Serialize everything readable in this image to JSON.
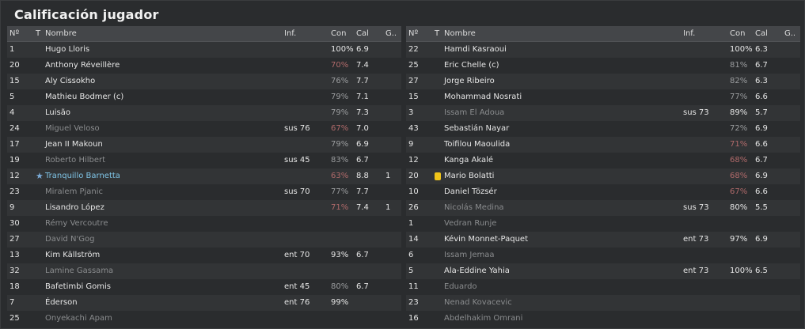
{
  "title": "Calificación jugador",
  "headers": {
    "num": "Nº",
    "t": "T",
    "name": "Nombre",
    "inf": "Inf.",
    "con": "Con",
    "cal": "Cal",
    "g": "G.."
  },
  "left": [
    {
      "num": "1",
      "name": "Hugo Lloris",
      "inf": "",
      "con": "100%",
      "cal": "6.9",
      "g": "",
      "name_style": "",
      "con_style": ""
    },
    {
      "num": "20",
      "name": "Anthony Réveillère",
      "inf": "",
      "con": "70%",
      "cal": "7.4",
      "g": "",
      "name_style": "",
      "con_style": "red"
    },
    {
      "num": "15",
      "name": "Aly Cissokho",
      "inf": "",
      "con": "76%",
      "cal": "7.7",
      "g": "",
      "name_style": "",
      "con_style": "grey"
    },
    {
      "num": "5",
      "name": "Mathieu Bodmer (c)",
      "inf": "",
      "con": "79%",
      "cal": "7.1",
      "g": "",
      "name_style": "",
      "con_style": "grey"
    },
    {
      "num": "4",
      "name": "Luisão",
      "inf": "",
      "con": "79%",
      "cal": "7.3",
      "g": "",
      "name_style": "",
      "con_style": "grey"
    },
    {
      "num": "24",
      "name": "Miguel Veloso",
      "inf": "sus 76",
      "con": "67%",
      "cal": "7.0",
      "g": "",
      "name_style": "dim",
      "con_style": "red"
    },
    {
      "num": "17",
      "name": "Jean II Makoun",
      "inf": "",
      "con": "79%",
      "cal": "6.9",
      "g": "",
      "name_style": "",
      "con_style": "grey"
    },
    {
      "num": "19",
      "name": "Roberto Hilbert",
      "inf": "sus 45",
      "con": "83%",
      "cal": "6.7",
      "g": "",
      "name_style": "dim",
      "con_style": "grey"
    },
    {
      "num": "12",
      "name": "Tranquillo Barnetta",
      "inf": "",
      "con": "63%",
      "cal": "8.8",
      "g": "1",
      "name_style": "hl",
      "con_style": "red",
      "star": "★"
    },
    {
      "num": "23",
      "name": "Miralem Pjanic",
      "inf": "sus 70",
      "con": "77%",
      "cal": "7.7",
      "g": "",
      "name_style": "dim",
      "con_style": "grey"
    },
    {
      "num": "9",
      "name": "Lisandro López",
      "inf": "",
      "con": "71%",
      "cal": "7.4",
      "g": "1",
      "name_style": "",
      "con_style": "red"
    },
    {
      "num": "30",
      "name": "Rémy Vercoutre",
      "inf": "",
      "con": "",
      "cal": "",
      "g": "",
      "name_style": "dim",
      "con_style": ""
    },
    {
      "num": "27",
      "name": "David N'Gog",
      "inf": "",
      "con": "",
      "cal": "",
      "g": "",
      "name_style": "dim",
      "con_style": ""
    },
    {
      "num": "13",
      "name": "Kim Källström",
      "inf": "ent 70",
      "con": "93%",
      "cal": "6.7",
      "g": "",
      "name_style": "",
      "con_style": ""
    },
    {
      "num": "32",
      "name": "Lamine Gassama",
      "inf": "",
      "con": "",
      "cal": "",
      "g": "",
      "name_style": "dim",
      "con_style": ""
    },
    {
      "num": "18",
      "name": "Bafetimbi Gomis",
      "inf": "ent 45",
      "con": "80%",
      "cal": "6.7",
      "g": "",
      "name_style": "",
      "con_style": "grey"
    },
    {
      "num": "7",
      "name": "Éderson",
      "inf": "ent 76",
      "con": "99%",
      "cal": "",
      "g": "",
      "name_style": "",
      "con_style": ""
    },
    {
      "num": "25",
      "name": "Onyekachi Apam",
      "inf": "",
      "con": "",
      "cal": "",
      "g": "",
      "name_style": "dim",
      "con_style": ""
    }
  ],
  "right": [
    {
      "num": "22",
      "name": "Hamdi Kasraoui",
      "inf": "",
      "con": "100%",
      "cal": "6.3",
      "g": "",
      "name_style": "",
      "con_style": ""
    },
    {
      "num": "25",
      "name": "Eric Chelle (c)",
      "inf": "",
      "con": "81%",
      "cal": "6.7",
      "g": "",
      "name_style": "",
      "con_style": "grey"
    },
    {
      "num": "27",
      "name": "Jorge Ribeiro",
      "inf": "",
      "con": "82%",
      "cal": "6.3",
      "g": "",
      "name_style": "",
      "con_style": "grey"
    },
    {
      "num": "15",
      "name": "Mohammad Nosrati",
      "inf": "",
      "con": "77%",
      "cal": "6.6",
      "g": "",
      "name_style": "",
      "con_style": "grey"
    },
    {
      "num": "3",
      "name": "Issam El Adoua",
      "inf": "sus 73",
      "con": "89%",
      "cal": "5.7",
      "g": "",
      "name_style": "dim",
      "con_style": ""
    },
    {
      "num": "43",
      "name": "Sebastián Nayar",
      "inf": "",
      "con": "72%",
      "cal": "6.9",
      "g": "",
      "name_style": "",
      "con_style": "grey"
    },
    {
      "num": "9",
      "name": "Toifilou Maoulida",
      "inf": "",
      "con": "71%",
      "cal": "6.6",
      "g": "",
      "name_style": "",
      "con_style": "red"
    },
    {
      "num": "12",
      "name": "Kanga Akalé",
      "inf": "",
      "con": "68%",
      "cal": "6.7",
      "g": "",
      "name_style": "",
      "con_style": "red"
    },
    {
      "num": "20",
      "name": "Mario Bolatti",
      "inf": "",
      "con": "68%",
      "cal": "6.9",
      "g": "",
      "name_style": "",
      "con_style": "red",
      "card": "yellow"
    },
    {
      "num": "10",
      "name": "Daniel Tözsér",
      "inf": "",
      "con": "67%",
      "cal": "6.6",
      "g": "",
      "name_style": "",
      "con_style": "red"
    },
    {
      "num": "26",
      "name": "Nicolás Medina",
      "inf": "sus 73",
      "con": "80%",
      "cal": "5.5",
      "g": "",
      "name_style": "dim",
      "con_style": ""
    },
    {
      "num": "1",
      "name": "Vedran Runje",
      "inf": "",
      "con": "",
      "cal": "",
      "g": "",
      "name_style": "dim",
      "con_style": ""
    },
    {
      "num": "14",
      "name": "Kévin Monnet-Paquet",
      "inf": "ent 73",
      "con": "97%",
      "cal": "6.9",
      "g": "",
      "name_style": "",
      "con_style": ""
    },
    {
      "num": "6",
      "name": "Issam Jemaa",
      "inf": "",
      "con": "",
      "cal": "",
      "g": "",
      "name_style": "dim",
      "con_style": ""
    },
    {
      "num": "5",
      "name": "Ala-Eddine Yahia",
      "inf": "ent 73",
      "con": "100%",
      "cal": "6.5",
      "g": "",
      "name_style": "",
      "con_style": ""
    },
    {
      "num": "11",
      "name": "Eduardo",
      "inf": "",
      "con": "",
      "cal": "",
      "g": "",
      "name_style": "dim",
      "con_style": ""
    },
    {
      "num": "23",
      "name": "Nenad Kovacevic",
      "inf": "",
      "con": "",
      "cal": "",
      "g": "",
      "name_style": "dim",
      "con_style": ""
    },
    {
      "num": "16",
      "name": "Abdelhakim Omrani",
      "inf": "",
      "con": "",
      "cal": "",
      "g": "",
      "name_style": "dim",
      "con_style": ""
    }
  ]
}
